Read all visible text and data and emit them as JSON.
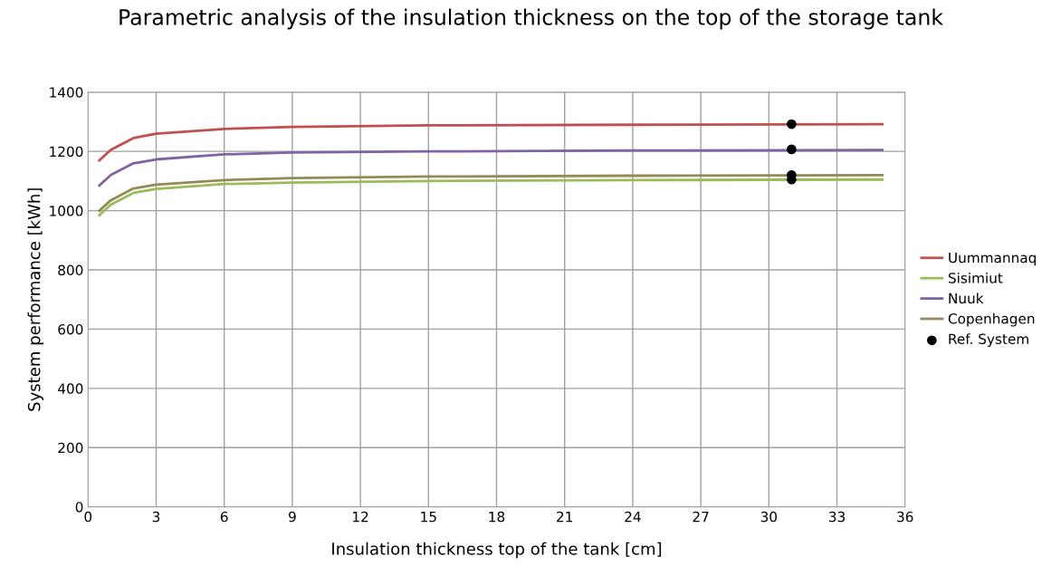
{
  "chart_data": {
    "type": "line",
    "title": "Parametric analysis of the insulation thickness on the top of the storage tank",
    "xlabel": "Insulation thickness top of the tank [cm]",
    "ylabel": "System performance [kWh]",
    "xlim": [
      0,
      36
    ],
    "xticks": [
      0,
      3,
      6,
      9,
      12,
      15,
      18,
      21,
      24,
      27,
      30,
      33,
      36
    ],
    "ylim": [
      0,
      1400
    ],
    "yticks": [
      0,
      200,
      400,
      600,
      800,
      1000,
      1200,
      1400
    ],
    "grid": true,
    "legend": "right",
    "marker": "none",
    "line_style": "solid",
    "series": [
      {
        "name": "Uummannaq",
        "color": "#c0504d",
        "x": [
          0.5,
          1,
          2,
          3,
          6,
          9,
          15,
          24,
          35
        ],
        "values": [
          1170,
          1205,
          1245,
          1260,
          1276,
          1283,
          1288,
          1290,
          1292
        ]
      },
      {
        "name": "Sisimiut",
        "color": "#9bbb59",
        "x": [
          0.5,
          1,
          2,
          3,
          6,
          9,
          15,
          24,
          35
        ],
        "values": [
          985,
          1020,
          1060,
          1073,
          1090,
          1095,
          1100,
          1103,
          1105
        ]
      },
      {
        "name": "Nuuk",
        "color": "#8064a2",
        "x": [
          0.5,
          1,
          2,
          3,
          6,
          9,
          15,
          24,
          35
        ],
        "values": [
          1085,
          1120,
          1160,
          1173,
          1190,
          1196,
          1200,
          1203,
          1205
        ]
      },
      {
        "name": "Copenhagen",
        "color": "#948a54",
        "x": [
          0.5,
          1,
          2,
          3,
          6,
          9,
          15,
          24,
          35
        ],
        "values": [
          1000,
          1035,
          1075,
          1088,
          1103,
          1110,
          1115,
          1118,
          1120
        ]
      },
      {
        "name": "Ref. System",
        "type": "scatter",
        "marker": "circle",
        "color": "#000000",
        "x": [
          31,
          31,
          31,
          31
        ],
        "values": [
          1292,
          1207,
          1120,
          1105
        ]
      }
    ]
  }
}
